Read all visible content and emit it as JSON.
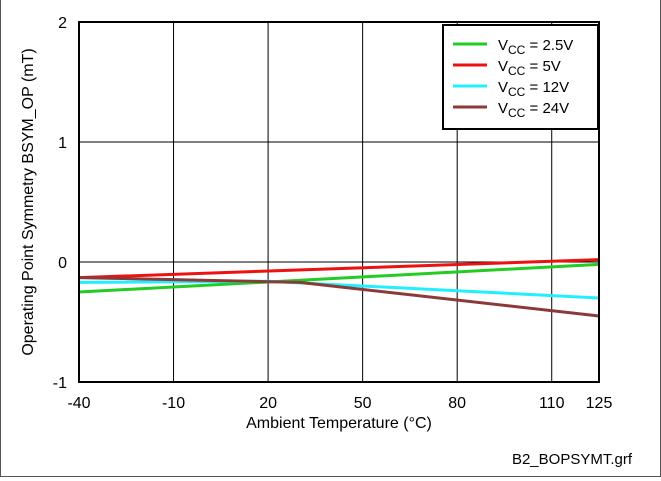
{
  "chart_data": {
    "type": "line",
    "xlabel": "Ambient Temperature (°C)",
    "ylabel": "Operating Point Symmetry BSYM_OP (mT)",
    "xlim": [
      -40,
      125
    ],
    "ylim": [
      -1,
      2
    ],
    "xticks": [
      -40,
      -10,
      20,
      50,
      80,
      110,
      125
    ],
    "yticks": [
      -1,
      0,
      1,
      2
    ],
    "grid": true,
    "legend_position": "top-right",
    "series": [
      {
        "name_main": "V",
        "name_sub": "CC",
        "name_rest": " = 2.5V",
        "color": "#22cc22",
        "x": [
          -40,
          125
        ],
        "y": [
          -0.25,
          -0.02
        ]
      },
      {
        "name_main": "V",
        "name_sub": "CC",
        "name_rest": " = 5V",
        "color": "#ee1111",
        "x": [
          -40,
          125
        ],
        "y": [
          -0.13,
          0.02
        ]
      },
      {
        "name_main": "V",
        "name_sub": "CC",
        "name_rest": " = 12V",
        "color": "#22eeff",
        "x": [
          -40,
          20,
          125
        ],
        "y": [
          -0.17,
          -0.16,
          -0.3
        ]
      },
      {
        "name_main": "V",
        "name_sub": "CC",
        "name_rest": " = 24V",
        "color": "#8b3a3a",
        "x": [
          -40,
          30,
          125
        ],
        "y": [
          -0.13,
          -0.17,
          -0.45
        ]
      }
    ]
  },
  "footer_text": "B2_BOPSYMT.grf"
}
